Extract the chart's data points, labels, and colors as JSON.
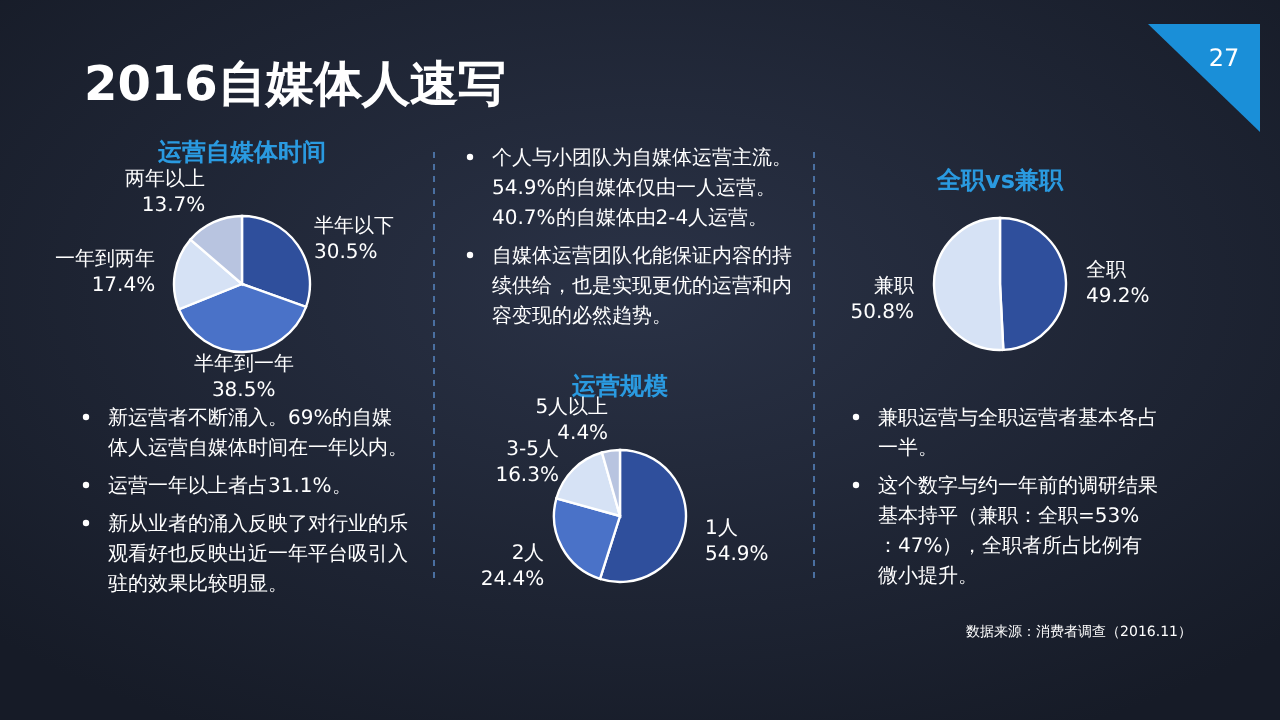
{
  "chart_data": [
    {
      "type": "other",
      "title": "2016自媒体人速写",
      "annotations": [
        "27",
        "数据来源：消费者调查（2016.11）"
      ]
    },
    {
      "type": "pie",
      "title": "运营自媒体时间",
      "categories": [
        "半年以下",
        "半年到一年",
        "一年到两年",
        "两年以上"
      ],
      "values": [
        30.5,
        38.5,
        17.4,
        13.7
      ],
      "value_labels": [
        "30.5%",
        "38.5%",
        "17.4%",
        "13.7%"
      ],
      "colors": [
        "#2f4f9c",
        "#4a72c8",
        "#d6e2f5",
        "#b8c4e0"
      ],
      "annotations": [
        "新运营者不断涌入。69%的自媒体人运营自媒体时间在一年以内。",
        "运营一年以上者占31.1%。",
        "新从业者的涌入反映了对行业的乐观看好也反映出近一年平台吸引入驻的效果比较明显。"
      ]
    },
    {
      "type": "pie",
      "title": "运营规模",
      "categories": [
        "1人",
        "2人",
        "3-5人",
        "5人以上"
      ],
      "values": [
        54.9,
        24.4,
        16.3,
        4.4
      ],
      "value_labels": [
        "54.9%",
        "24.4%",
        "16.3%",
        "4.4%"
      ],
      "colors": [
        "#2f4f9c",
        "#4a72c8",
        "#d6e2f5",
        "#b8c4e0"
      ],
      "annotations": [
        "个人与小团队为自媒体运营主流。54.9%的自媒体仅由一人运营。40.7%的自媒体由2-4人运营。",
        "自媒体运营团队化能保证内容的持续供给，也是实现更优的运营和内容变现的必然趋势。"
      ]
    },
    {
      "type": "pie",
      "title": "全职vs兼职",
      "categories": [
        "全职",
        "兼职"
      ],
      "values": [
        49.2,
        50.8
      ],
      "value_labels": [
        "49.2%",
        "50.8%"
      ],
      "colors": [
        "#2f4f9c",
        "#d6e2f5"
      ],
      "annotations": [
        "兼职运营与全职运营者基本各占一半。",
        "这个数字与约一年前的调研结果基本持平（兼职：全职=53%：47%），全职者所占比例有微小提升。"
      ]
    }
  ]
}
